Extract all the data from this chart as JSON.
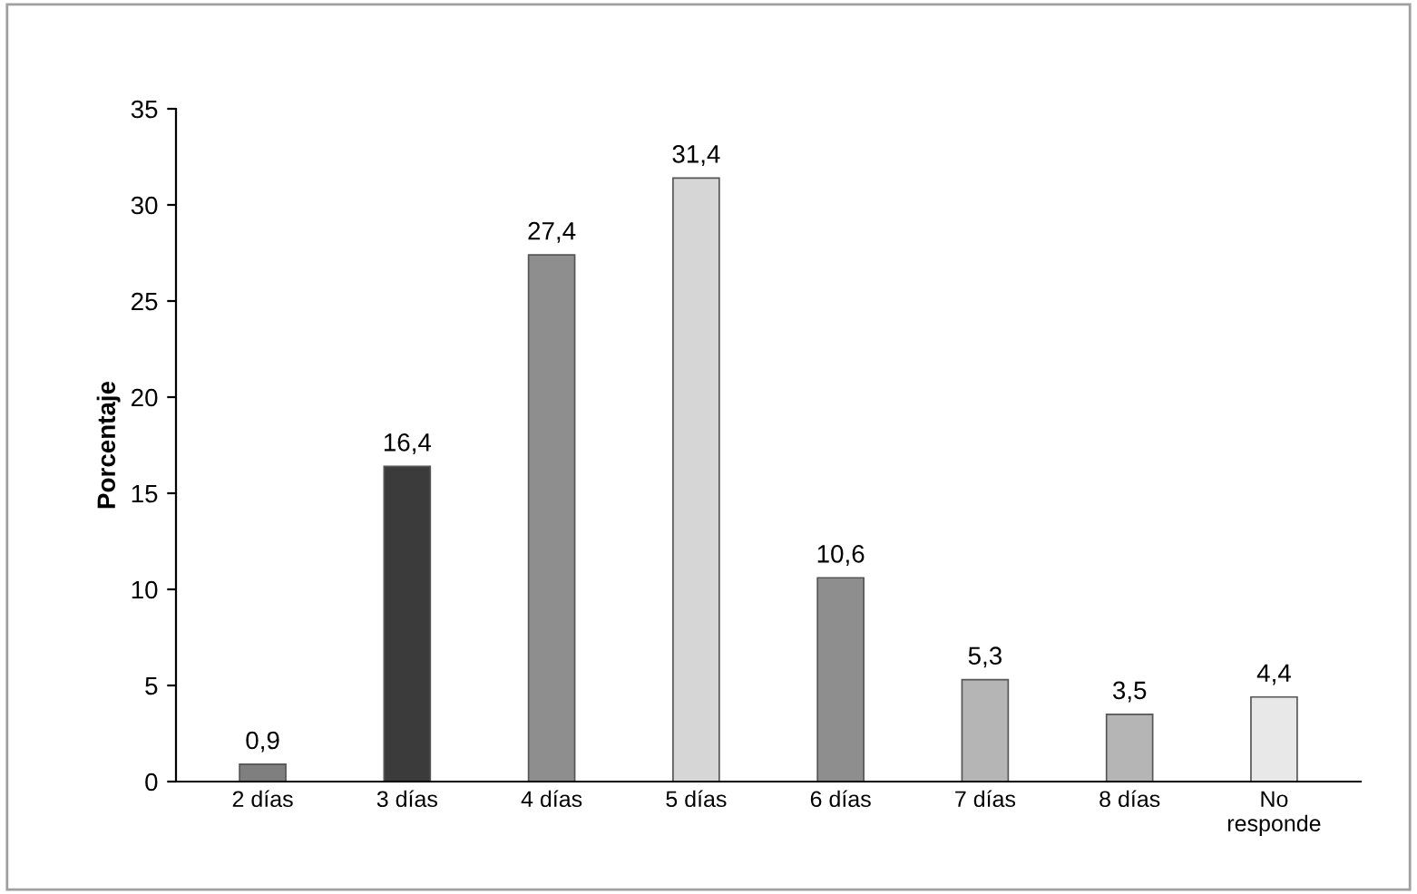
{
  "chart_data": {
    "type": "bar",
    "ylabel": "Porcentaje",
    "categories": [
      "2 días",
      "3 días",
      "4 días",
      "5 días",
      "6 días",
      "7 días",
      "8 días",
      "No\nresponde"
    ],
    "values": [
      0.9,
      16.4,
      27.4,
      31.4,
      10.6,
      5.3,
      3.5,
      4.4
    ],
    "colors": [
      "#7f7f7f",
      "#3b3b3b",
      "#8e8e8e",
      "#d6d6d6",
      "#8e8e8e",
      "#b5b5b5",
      "#b5b5b5",
      "#e8e8e8"
    ],
    "value_labels": [
      "0,9",
      "16,4",
      "27,4",
      "31,4",
      "10,6",
      "5,3",
      "3,5",
      "4,4"
    ],
    "ylim": [
      0,
      35
    ],
    "yticks": [
      0,
      5,
      10,
      15,
      20,
      25,
      30,
      35
    ],
    "grid": false,
    "legend": false
  }
}
